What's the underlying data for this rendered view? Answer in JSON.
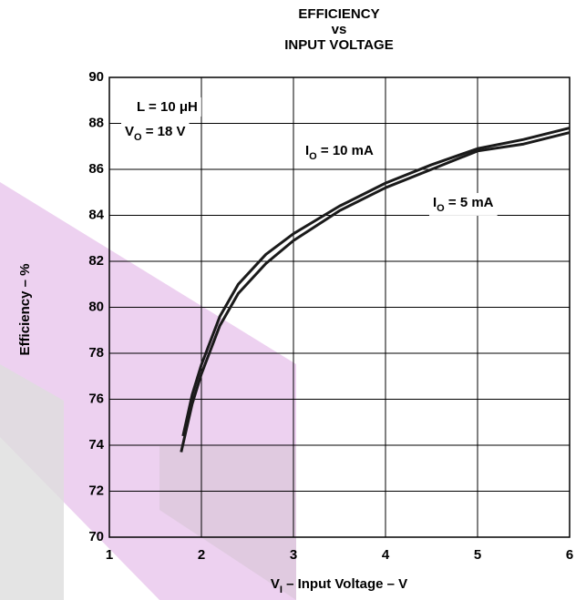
{
  "chart_data": {
    "type": "line",
    "title": [
      "EFFICIENCY",
      "vs",
      "INPUT VOLTAGE"
    ],
    "x_label": [
      {
        "text": "V"
      },
      {
        "text": "I",
        "sub": true
      },
      {
        "text": " – Input Voltage – V"
      }
    ],
    "y_label": "Efficiency – %",
    "annotations": [
      [
        {
          "text": "L = 10 μH"
        }
      ],
      [
        {
          "text": "V"
        },
        {
          "text": "O",
          "sub": true
        },
        {
          "text": " = 18 V"
        }
      ]
    ],
    "series": [
      {
        "name": [
          {
            "text": "I"
          },
          {
            "text": "O",
            "sub": true
          },
          {
            "text": " = 10 mA"
          }
        ],
        "color": "#1a1a1a",
        "x": [
          1.8,
          1.9,
          2.0,
          2.2,
          2.4,
          2.7,
          3.0,
          3.5,
          4.0,
          4.5,
          5.0,
          5.5,
          6.0
        ],
        "values": [
          74.4,
          76.2,
          77.5,
          79.6,
          81.0,
          82.3,
          83.2,
          84.4,
          85.4,
          86.2,
          86.9,
          87.3,
          87.8
        ]
      },
      {
        "name": [
          {
            "text": "I"
          },
          {
            "text": "O",
            "sub": true
          },
          {
            "text": " = 5 mA"
          }
        ],
        "color": "#1a1a1a",
        "x": [
          1.78,
          1.9,
          2.0,
          2.2,
          2.4,
          2.7,
          3.0,
          3.5,
          4.0,
          4.5,
          5.0,
          5.5,
          6.0
        ],
        "values": [
          73.7,
          75.8,
          77.1,
          79.2,
          80.6,
          81.9,
          82.9,
          84.2,
          85.2,
          86.0,
          86.8,
          87.1,
          87.6
        ]
      }
    ],
    "xlim": [
      1,
      6
    ],
    "xticks": [
      1,
      2,
      3,
      4,
      5,
      6
    ],
    "ylim": [
      70,
      90
    ],
    "yticks": [
      70,
      72,
      74,
      76,
      78,
      80,
      82,
      84,
      86,
      88,
      90
    ],
    "grid": true
  }
}
